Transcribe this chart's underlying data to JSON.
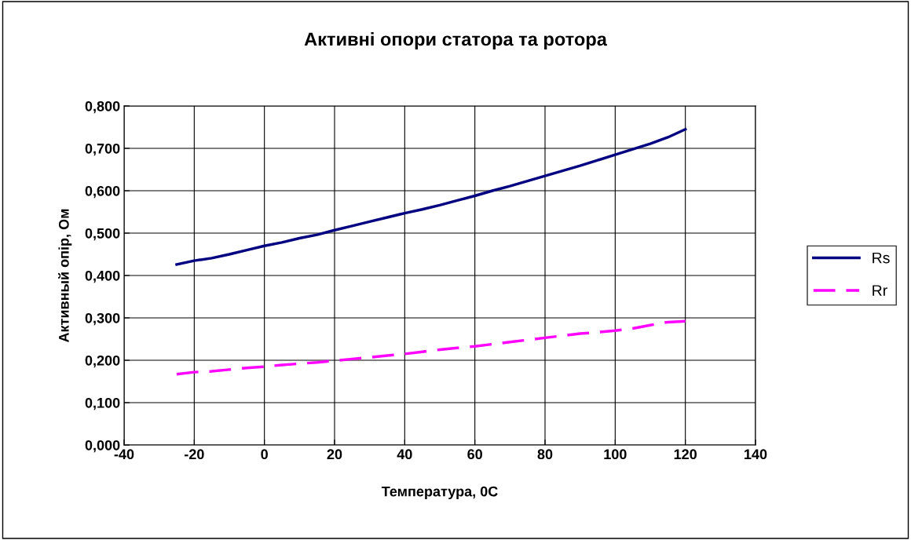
{
  "chart_data": {
    "type": "line",
    "title": "Активні опори статора та ротора",
    "xlabel": "Температура, 0С",
    "ylabel": "Активный опір, Ом",
    "x": [
      -25,
      -20,
      -15,
      -10,
      -5,
      0,
      5,
      10,
      15,
      20,
      25,
      30,
      35,
      40,
      45,
      50,
      55,
      60,
      65,
      70,
      75,
      80,
      85,
      90,
      95,
      100,
      105,
      110,
      115,
      120
    ],
    "series": [
      {
        "name": "Rs",
        "color": "#000080",
        "line_style": "solid",
        "values": [
          0.426,
          0.435,
          0.441,
          0.45,
          0.46,
          0.47,
          0.478,
          0.488,
          0.496,
          0.507,
          0.517,
          0.527,
          0.537,
          0.547,
          0.556,
          0.566,
          0.577,
          0.588,
          0.6,
          0.611,
          0.623,
          0.635,
          0.647,
          0.659,
          0.672,
          0.685,
          0.698,
          0.711,
          0.726,
          0.745
        ]
      },
      {
        "name": "Rr",
        "color": "#ff00ff",
        "line_style": "dashed",
        "values": [
          0.167,
          0.172,
          0.174,
          0.178,
          0.182,
          0.185,
          0.189,
          0.192,
          0.195,
          0.199,
          0.203,
          0.207,
          0.211,
          0.215,
          0.22,
          0.225,
          0.229,
          0.233,
          0.238,
          0.243,
          0.248,
          0.253,
          0.258,
          0.263,
          0.266,
          0.27,
          0.275,
          0.283,
          0.29,
          0.292
        ]
      }
    ],
    "xlim": [
      -40,
      140
    ],
    "xticks": [
      -40,
      -20,
      0,
      20,
      40,
      60,
      80,
      100,
      120,
      140
    ],
    "ylim": [
      0,
      0.8
    ],
    "yticks": [
      {
        "value": 0,
        "label": "0,000"
      },
      {
        "value": 0.1,
        "label": "0,100"
      },
      {
        "value": 0.2,
        "label": "0,200"
      },
      {
        "value": 0.3,
        "label": "0,300"
      },
      {
        "value": 0.4,
        "label": "0,400"
      },
      {
        "value": 0.5,
        "label": "0,500"
      },
      {
        "value": 0.6,
        "label": "0,600"
      },
      {
        "value": 0.7,
        "label": "0,700"
      },
      {
        "value": 0.8,
        "label": "0,800"
      }
    ],
    "grid": true,
    "legend": "right",
    "marker": "none"
  }
}
